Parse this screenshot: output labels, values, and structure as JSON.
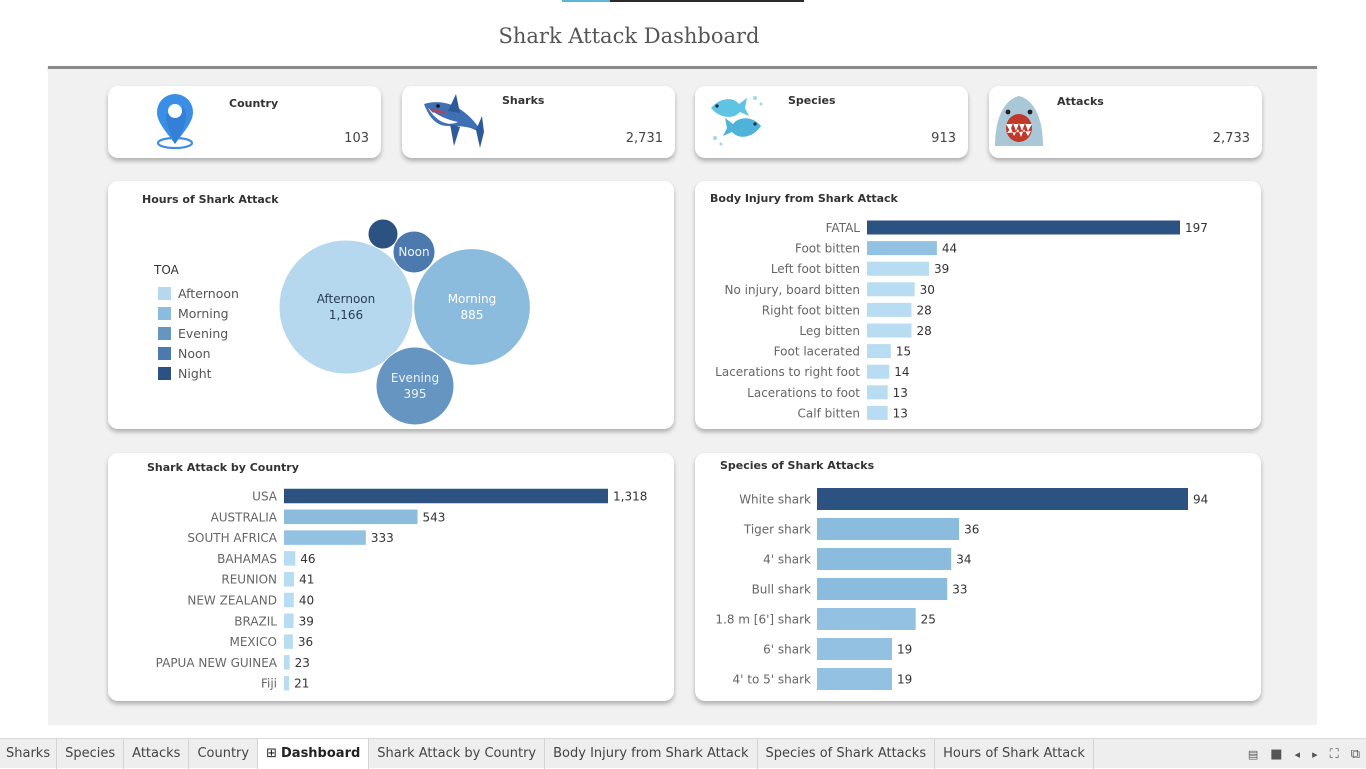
{
  "dashboard": {
    "title": "Shark Attack Dashboard"
  },
  "kpis": [
    {
      "label": "Country",
      "value": "103",
      "icon": "location-pin-icon"
    },
    {
      "label": "Sharks",
      "value": "2,731",
      "icon": "shark-icon"
    },
    {
      "label": "Species",
      "value": "913",
      "icon": "fish-icon"
    },
    {
      "label": "Attacks",
      "value": "2,733",
      "icon": "shark-jaws-icon"
    }
  ],
  "hours": {
    "title": "Hours of Shark Attack",
    "legend_title": "TOA",
    "legend": [
      {
        "label": "Afternoon",
        "color": "#b5d8ee"
      },
      {
        "label": "Morning",
        "color": "#8bbbdd"
      },
      {
        "label": "Evening",
        "color": "#6795c2"
      },
      {
        "label": "Noon",
        "color": "#4c7aae"
      },
      {
        "label": "Night",
        "color": "#2c5282"
      }
    ]
  },
  "injury": {
    "title": "Body Injury from Shark Attack"
  },
  "country": {
    "title": "Shark Attack by Country"
  },
  "species": {
    "title": "Species of Shark Attacks"
  },
  "chart_data": [
    {
      "type": "bubble",
      "title": "Hours of Shark Attack",
      "categories": [
        "Afternoon",
        "Morning",
        "Evening",
        "Noon",
        "Night"
      ],
      "values": [
        1166,
        885,
        395,
        null,
        null
      ],
      "labels": [
        "Afternoon\n1,166",
        "Morning\n885",
        "Evening\n395",
        "Noon",
        ""
      ],
      "colors": [
        "#b5d8ee",
        "#8bbbdd",
        "#6795c2",
        "#4c7aae",
        "#2c5282"
      ]
    },
    {
      "type": "bar",
      "title": "Body Injury from Shark Attack",
      "categories": [
        "FATAL",
        "Foot bitten",
        "Left foot bitten",
        "No injury, board bitten",
        "Right foot bitten",
        "Leg bitten",
        "Foot lacerated",
        "Lacerations to right foot",
        "Lacerations to foot",
        "Calf bitten"
      ],
      "values": [
        197,
        44,
        39,
        30,
        28,
        28,
        15,
        14,
        13,
        13
      ]
    },
    {
      "type": "bar",
      "title": "Shark Attack by Country",
      "categories": [
        "USA",
        "AUSTRALIA",
        "SOUTH AFRICA",
        "BAHAMAS",
        "REUNION",
        "NEW ZEALAND",
        "BRAZIL",
        "MEXICO",
        "PAPUA NEW GUINEA",
        "Fiji"
      ],
      "values": [
        1318,
        543,
        333,
        46,
        41,
        40,
        39,
        36,
        23,
        21
      ],
      "value_labels": [
        "1,318",
        "543",
        "333",
        "46",
        "41",
        "40",
        "39",
        "36",
        "23",
        "21"
      ]
    },
    {
      "type": "bar",
      "title": "Species of Shark Attacks",
      "categories": [
        "White shark",
        "Tiger shark",
        "4' shark",
        "Bull shark",
        "1.8 m [6'] shark",
        "6' shark",
        "4' to 5' shark"
      ],
      "values": [
        94,
        36,
        34,
        33,
        25,
        19,
        19
      ]
    }
  ],
  "tabs": [
    {
      "label": "Sharks",
      "active": false
    },
    {
      "label": "Species",
      "active": false
    },
    {
      "label": "Attacks",
      "active": false
    },
    {
      "label": "Country",
      "active": false
    },
    {
      "label": "Dashboard",
      "active": true,
      "icon": "grid-icon"
    },
    {
      "label": "Shark Attack by Country",
      "active": false
    },
    {
      "label": "Body Injury from Shark Attack",
      "active": false
    },
    {
      "label": "Species of Shark Attacks",
      "active": false
    },
    {
      "label": "Hours of Shark Attack",
      "active": false
    }
  ],
  "tab_controls": [
    "tile-view-icon",
    "stop-icon",
    "prev-icon",
    "next-icon",
    "fit-icon",
    "present-icon"
  ]
}
